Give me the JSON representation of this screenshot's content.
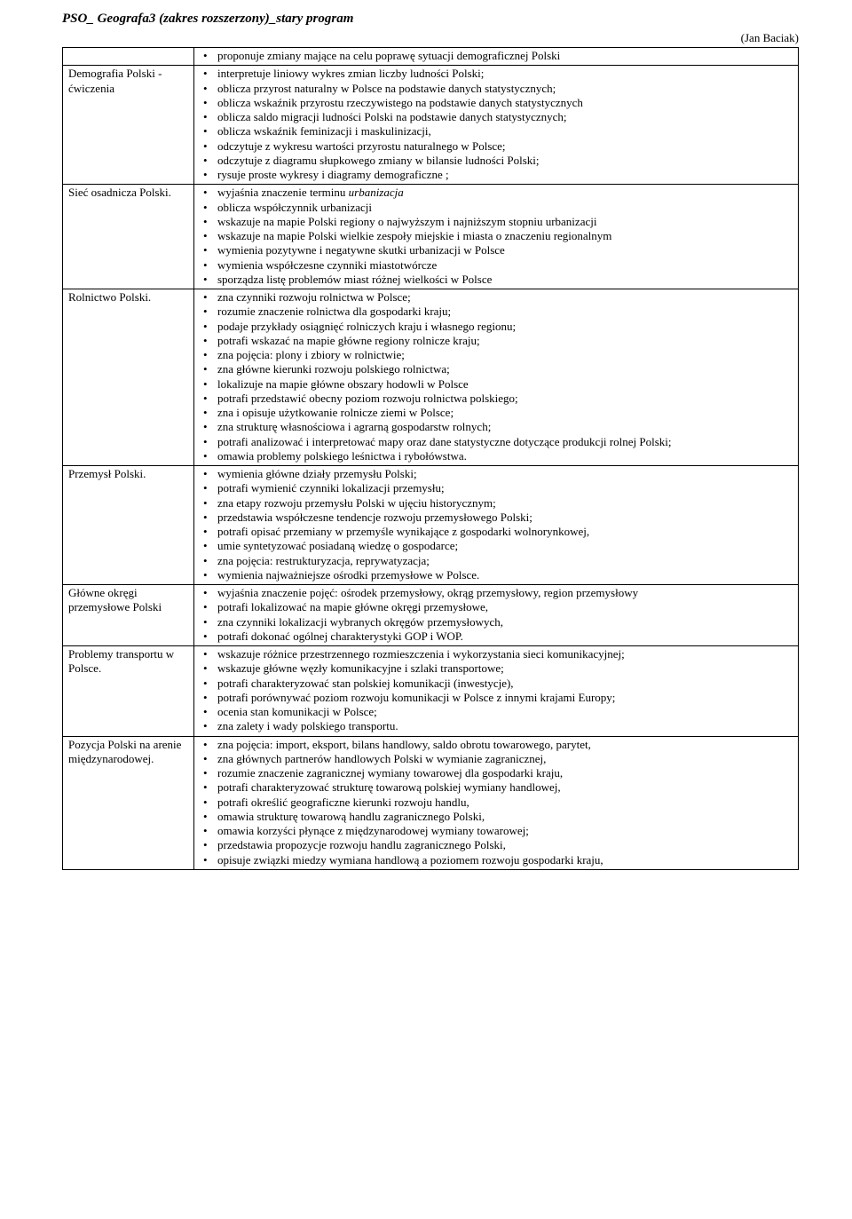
{
  "header": {
    "title_prefix": "PSO_ Geografa3 ",
    "title_em": "(zakres rozszerzony)_stary program",
    "author": "(Jan Baciak)"
  },
  "rows": [
    {
      "left": "",
      "items": [
        "proponuje zmiany mające na celu poprawę sytuacji demograficznej Polski"
      ]
    },
    {
      "left": "Demografia Polski - ćwiczenia",
      "items": [
        "interpretuje liniowy wykres zmian liczby ludności Polski;",
        "oblicza przyrost naturalny w Polsce na podstawie danych statystycznych;",
        "oblicza wskaźnik przyrostu rzeczywistego na podstawie danych statystycznych",
        "oblicza saldo migracji ludności Polski na podstawie danych statystycznych;",
        "oblicza wskaźnik feminizacji i maskulinizacji,",
        "odczytuje z wykresu wartości przyrostu naturalnego w Polsce;",
        "odczytuje z diagramu słupkowego zmiany w bilansie ludności Polski;",
        "rysuje proste wykresy i diagramy demograficzne ;"
      ]
    },
    {
      "left": "Sieć osadnicza Polski.",
      "items": [
        {
          "text": "wyjaśnia znaczenie terminu ",
          "em": "urbanizacja"
        },
        "oblicza współczynnik urbanizacji",
        "wskazuje na mapie Polski regiony o najwyższym i najniższym stopniu urbanizacji",
        "wskazuje na mapie Polski wielkie zespoły miejskie i miasta o znaczeniu regionalnym",
        "wymienia pozytywne i negatywne skutki urbanizacji w Polsce",
        "wymienia współczesne czynniki miastotwórcze",
        "sporządza listę problemów miast różnej wielkości w Polsce"
      ]
    },
    {
      "left": "Rolnictwo Polski.",
      "items": [
        " zna czynniki rozwoju rolnictwa w Polsce;",
        "rozumie znaczenie rolnictwa dla gospodarki kraju;",
        "podaje przykłady osiągnięć rolniczych kraju i własnego regionu;",
        "potrafi wskazać na mapie główne regiony rolnicze kraju;",
        "zna pojęcia: plony i zbiory w rolnictwie;",
        "zna główne kierunki rozwoju polskiego rolnictwa;",
        "lokalizuje na mapie główne obszary hodowli w Polsce",
        "potrafi przedstawić obecny poziom rozwoju rolnictwa polskiego;",
        "zna i opisuje użytkowanie rolnicze ziemi w Polsce;",
        "zna strukturę własnościowa i agrarną gospodarstw rolnych;",
        "potrafi analizować i interpretować mapy oraz dane statystyczne dotyczące produkcji rolnej Polski;",
        "omawia problemy polskiego leśnictwa i rybołówstwa."
      ]
    },
    {
      "left": "Przemysł Polski.",
      "items": [
        "wymienia główne działy przemysłu Polski;",
        "potrafi wymienić czynniki lokalizacji przemysłu;",
        "zna etapy rozwoju przemysłu Polski w ujęciu historycznym;",
        "przedstawia współczesne tendencje rozwoju przemysłowego Polski;",
        "potrafi opisać przemiany w przemyśle wynikające z gospodarki wolnorynkowej,",
        "umie syntetyzować posiadaną wiedzę o gospodarce;",
        "zna pojęcia: restrukturyzacja, reprywatyzacja;",
        "wymienia najważniejsze ośrodki przemysłowe w Polsce."
      ]
    },
    {
      "left": "Główne okręgi przemysłowe Polski",
      "items": [
        "wyjaśnia znaczenie pojęć: ośrodek przemysłowy, okrąg przemysłowy, region przemysłowy",
        "potrafi lokalizować na mapie główne okręgi przemysłowe,",
        "zna czynniki lokalizacji wybranych okręgów przemysłowych,",
        "potrafi dokonać ogólnej charakterystyki  GOP i WOP."
      ]
    },
    {
      "left": "Problemy transportu w Polsce.",
      "items": [
        "wskazuje różnice przestrzennego rozmieszczenia i wykorzystania sieci komunikacyjnej;",
        "wskazuje główne węzły komunikacyjne i szlaki transportowe;",
        "potrafi charakteryzować stan polskiej komunikacji (inwestycje),",
        "potrafi porównywać poziom rozwoju komunikacji w Polsce z innymi krajami Europy;",
        " ocenia stan komunikacji w Polsce;",
        "zna zalety i wady polskiego transportu."
      ]
    },
    {
      "left": "Pozycja Polski na arenie międzynarodowej.",
      "items": [
        "zna pojęcia: import, eksport, bilans handlowy, saldo obrotu towarowego, parytet,",
        "zna głównych partnerów handlowych Polski w wymianie zagranicznej,",
        "rozumie znaczenie zagranicznej wymiany towarowej dla gospodarki kraju,",
        "potrafi charakteryzować strukturę towarową polskiej wymiany handlowej,",
        "potrafi określić geograficzne kierunki rozwoju handlu,",
        "omawia strukturę towarową handlu zagranicznego Polski,",
        "omawia korzyści płynące z międzynarodowej wymiany towarowej;",
        "przedstawia propozycje rozwoju handlu zagranicznego Polski,",
        "opisuje związki miedzy wymiana handlową a poziomem rozwoju gospodarki kraju,"
      ]
    }
  ]
}
